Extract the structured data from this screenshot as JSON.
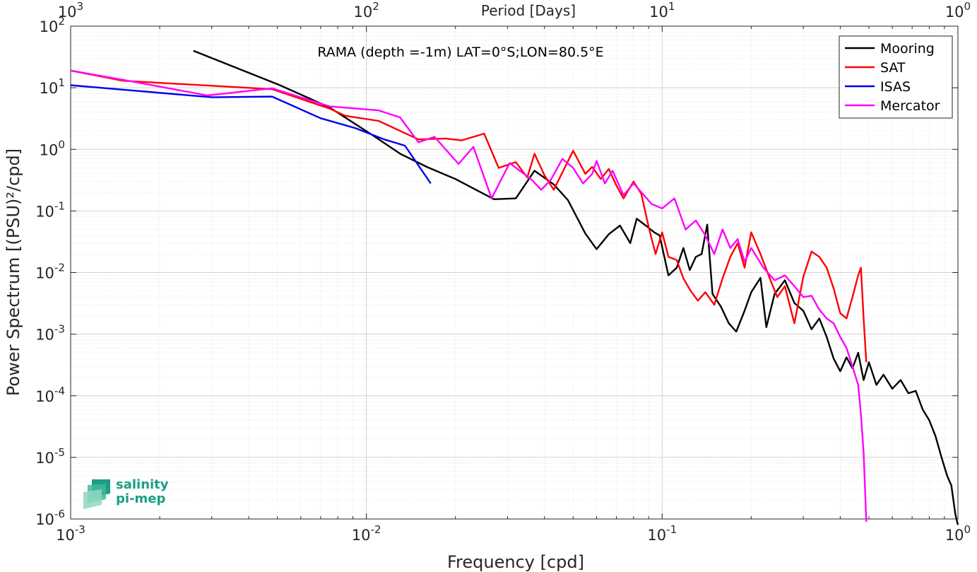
{
  "chart_data": {
    "type": "line",
    "title": "RAMA (depth =-1m) LAT=0°S;LON=80.5°E",
    "xlabel": "Frequency [cpd]",
    "ylabel": "Power Spectrum [(PSU)²/cpd]",
    "top_xlabel": "Period [Days]",
    "xscale": "log",
    "yscale": "log",
    "xlim": [
      0.001,
      1
    ],
    "ylim": [
      1e-06,
      100
    ],
    "x_ticks": [
      0.001,
      0.01,
      0.1,
      1
    ],
    "x_tick_labels": [
      {
        "base": "10",
        "exp": "-3"
      },
      {
        "base": "10",
        "exp": "-2"
      },
      {
        "base": "10",
        "exp": "-1"
      },
      {
        "base": "10",
        "exp": "0"
      }
    ],
    "top_tick_labels": [
      {
        "base": "10",
        "exp": "3"
      },
      {
        "base": "10",
        "exp": "2"
      },
      {
        "base": "10",
        "exp": "1"
      },
      {
        "base": "10",
        "exp": "0"
      }
    ],
    "y_ticks": [
      1e-06,
      1e-05,
      0.0001,
      0.001,
      0.01,
      0.1,
      1,
      10,
      100
    ],
    "y_tick_labels": [
      {
        "base": "10",
        "exp": "-6"
      },
      {
        "base": "10",
        "exp": "-5"
      },
      {
        "base": "10",
        "exp": "-4"
      },
      {
        "base": "10",
        "exp": "-3"
      },
      {
        "base": "10",
        "exp": "-2"
      },
      {
        "base": "10",
        "exp": "-1"
      },
      {
        "base": "10",
        "exp": "0"
      },
      {
        "base": "10",
        "exp": "1"
      },
      {
        "base": "10",
        "exp": "2"
      }
    ],
    "grid": true,
    "legend_position": "top-right",
    "series": [
      {
        "name": "Mooring",
        "color": "#000000",
        "points": [
          [
            0.0026,
            40
          ],
          [
            0.0051,
            11
          ],
          [
            0.0075,
            4.8
          ],
          [
            0.0105,
            1.7
          ],
          [
            0.013,
            0.85
          ],
          [
            0.016,
            0.52
          ],
          [
            0.02,
            0.33
          ],
          [
            0.027,
            0.155
          ],
          [
            0.032,
            0.16
          ],
          [
            0.037,
            0.45
          ],
          [
            0.043,
            0.27
          ],
          [
            0.048,
            0.15
          ],
          [
            0.055,
            0.043
          ],
          [
            0.06,
            0.024
          ],
          [
            0.066,
            0.042
          ],
          [
            0.072,
            0.058
          ],
          [
            0.078,
            0.03
          ],
          [
            0.082,
            0.075
          ],
          [
            0.088,
            0.058
          ],
          [
            0.094,
            0.045
          ],
          [
            0.098,
            0.04
          ],
          [
            0.105,
            0.009
          ],
          [
            0.112,
            0.012
          ],
          [
            0.118,
            0.025
          ],
          [
            0.124,
            0.011
          ],
          [
            0.13,
            0.018
          ],
          [
            0.136,
            0.02
          ],
          [
            0.142,
            0.06
          ],
          [
            0.148,
            0.0045
          ],
          [
            0.158,
            0.0028
          ],
          [
            0.168,
            0.0015
          ],
          [
            0.178,
            0.0011
          ],
          [
            0.19,
            0.0024
          ],
          [
            0.2,
            0.0048
          ],
          [
            0.215,
            0.0082
          ],
          [
            0.225,
            0.0013
          ],
          [
            0.24,
            0.0045
          ],
          [
            0.26,
            0.0075
          ],
          [
            0.28,
            0.0032
          ],
          [
            0.3,
            0.0024
          ],
          [
            0.32,
            0.0012
          ],
          [
            0.34,
            0.0018
          ],
          [
            0.36,
            0.0009
          ],
          [
            0.38,
            0.0004
          ],
          [
            0.4,
            0.00025
          ],
          [
            0.42,
            0.00042
          ],
          [
            0.44,
            0.00028
          ],
          [
            0.46,
            0.0005
          ],
          [
            0.48,
            0.00018
          ],
          [
            0.5,
            0.00035
          ],
          [
            0.53,
            0.00015
          ],
          [
            0.56,
            0.00022
          ],
          [
            0.6,
            0.00013
          ],
          [
            0.64,
            0.00018
          ],
          [
            0.68,
            0.00011
          ],
          [
            0.72,
            0.00012
          ],
          [
            0.76,
            6e-05
          ],
          [
            0.8,
            4e-05
          ],
          [
            0.84,
            2.2e-05
          ],
          [
            0.88,
            1e-05
          ],
          [
            0.92,
            5e-06
          ],
          [
            0.95,
            3.5e-06
          ],
          [
            0.98,
            1.2e-06
          ],
          [
            1.0,
            8e-07
          ]
        ]
      },
      {
        "name": "SAT",
        "color": "#ff0000",
        "points": [
          [
            0.001,
            19
          ],
          [
            0.0015,
            13
          ],
          [
            0.0048,
            9.5
          ],
          [
            0.0075,
            4.6
          ],
          [
            0.0085,
            3.5
          ],
          [
            0.011,
            2.9
          ],
          [
            0.015,
            1.45
          ],
          [
            0.0185,
            1.5
          ],
          [
            0.021,
            1.4
          ],
          [
            0.025,
            1.8
          ],
          [
            0.028,
            0.5
          ],
          [
            0.032,
            0.62
          ],
          [
            0.035,
            0.35
          ],
          [
            0.037,
            0.85
          ],
          [
            0.04,
            0.38
          ],
          [
            0.043,
            0.22
          ],
          [
            0.05,
            0.95
          ],
          [
            0.055,
            0.4
          ],
          [
            0.058,
            0.52
          ],
          [
            0.062,
            0.33
          ],
          [
            0.066,
            0.48
          ],
          [
            0.07,
            0.26
          ],
          [
            0.074,
            0.16
          ],
          [
            0.08,
            0.3
          ],
          [
            0.085,
            0.19
          ],
          [
            0.09,
            0.055
          ],
          [
            0.095,
            0.02
          ],
          [
            0.1,
            0.045
          ],
          [
            0.105,
            0.018
          ],
          [
            0.112,
            0.016
          ],
          [
            0.118,
            0.008
          ],
          [
            0.125,
            0.005
          ],
          [
            0.132,
            0.0035
          ],
          [
            0.14,
            0.0048
          ],
          [
            0.15,
            0.003
          ],
          [
            0.16,
            0.008
          ],
          [
            0.17,
            0.018
          ],
          [
            0.18,
            0.03
          ],
          [
            0.19,
            0.012
          ],
          [
            0.2,
            0.045
          ],
          [
            0.215,
            0.02
          ],
          [
            0.23,
            0.0085
          ],
          [
            0.245,
            0.004
          ],
          [
            0.26,
            0.006
          ],
          [
            0.28,
            0.0015
          ],
          [
            0.3,
            0.0085
          ],
          [
            0.32,
            0.022
          ],
          [
            0.34,
            0.018
          ],
          [
            0.36,
            0.012
          ],
          [
            0.38,
            0.0055
          ],
          [
            0.4,
            0.0022
          ],
          [
            0.42,
            0.0018
          ],
          [
            0.44,
            0.004
          ],
          [
            0.46,
            0.009
          ],
          [
            0.47,
            0.012
          ],
          [
            0.48,
            0.0018
          ],
          [
            0.49,
            0.00035
          ]
        ]
      },
      {
        "name": "ISAS",
        "color": "#0000ee",
        "points": [
          [
            0.001,
            11
          ],
          [
            0.003,
            7
          ],
          [
            0.0048,
            7.2
          ],
          [
            0.007,
            3.2
          ],
          [
            0.0092,
            2.2
          ],
          [
            0.0115,
            1.45
          ],
          [
            0.0135,
            1.15
          ],
          [
            0.0165,
            0.28
          ]
        ]
      },
      {
        "name": "Mercator",
        "color": "#ff00ff",
        "points": [
          [
            0.001,
            19
          ],
          [
            0.0015,
            13.5
          ],
          [
            0.0029,
            7.5
          ],
          [
            0.0048,
            9.8
          ],
          [
            0.0075,
            5
          ],
          [
            0.011,
            4.3
          ],
          [
            0.013,
            3.3
          ],
          [
            0.015,
            1.3
          ],
          [
            0.017,
            1.6
          ],
          [
            0.0205,
            0.58
          ],
          [
            0.023,
            1.1
          ],
          [
            0.0265,
            0.16
          ],
          [
            0.0305,
            0.6
          ],
          [
            0.033,
            0.45
          ],
          [
            0.036,
            0.33
          ],
          [
            0.039,
            0.22
          ],
          [
            0.042,
            0.32
          ],
          [
            0.046,
            0.7
          ],
          [
            0.05,
            0.5
          ],
          [
            0.054,
            0.28
          ],
          [
            0.058,
            0.4
          ],
          [
            0.06,
            0.65
          ],
          [
            0.064,
            0.28
          ],
          [
            0.068,
            0.45
          ],
          [
            0.074,
            0.18
          ],
          [
            0.08,
            0.28
          ],
          [
            0.086,
            0.19
          ],
          [
            0.092,
            0.13
          ],
          [
            0.1,
            0.11
          ],
          [
            0.11,
            0.16
          ],
          [
            0.12,
            0.05
          ],
          [
            0.13,
            0.07
          ],
          [
            0.14,
            0.04
          ],
          [
            0.15,
            0.02
          ],
          [
            0.16,
            0.05
          ],
          [
            0.17,
            0.025
          ],
          [
            0.18,
            0.035
          ],
          [
            0.19,
            0.015
          ],
          [
            0.2,
            0.025
          ],
          [
            0.22,
            0.012
          ],
          [
            0.24,
            0.0075
          ],
          [
            0.26,
            0.009
          ],
          [
            0.28,
            0.006
          ],
          [
            0.3,
            0.004
          ],
          [
            0.32,
            0.0042
          ],
          [
            0.34,
            0.0025
          ],
          [
            0.36,
            0.0018
          ],
          [
            0.38,
            0.0015
          ],
          [
            0.4,
            0.0009
          ],
          [
            0.42,
            0.0006
          ],
          [
            0.44,
            0.0003
          ],
          [
            0.46,
            0.00015
          ],
          [
            0.47,
            5e-05
          ],
          [
            0.48,
            1.2e-05
          ],
          [
            0.49,
            9e-07
          ]
        ]
      }
    ]
  }
}
